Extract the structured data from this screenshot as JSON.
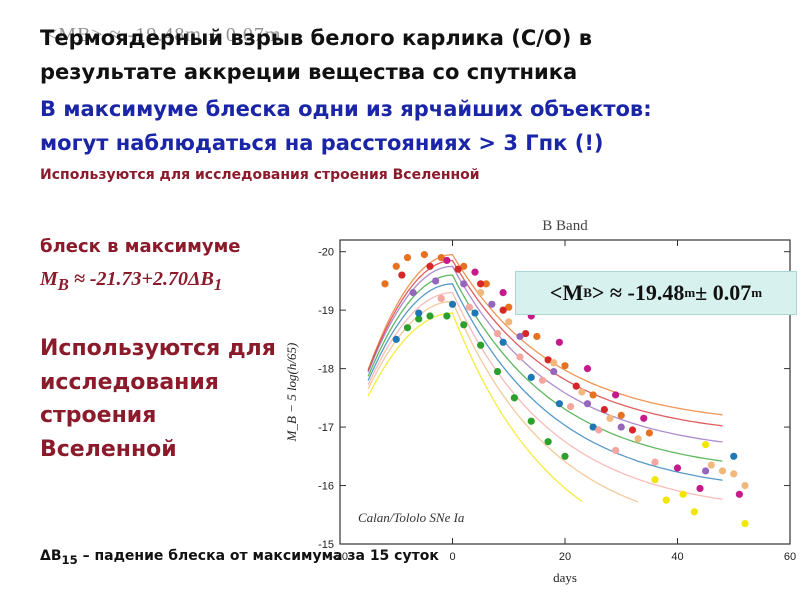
{
  "ghost_title": "<MB> ≈ -19.48m ± 0.07m",
  "title": {
    "line1": "Термоядерный взрыв белого карлика (C/O) в",
    "line2": "результате аккреции вещества со спутника"
  },
  "highlight": {
    "line1": "В максимуме блеска одни из ярчайших объектов:",
    "line2": "могут наблюдаться на расстояниях > 3 Гпк (!)"
  },
  "note_small": "Используются для исследования строения Вселенной",
  "left_column": {
    "peak_label": "блеск в максимуме",
    "formula_prefix": "M",
    "formula_sub": "B",
    "formula_rest": " ≈ -21.73+2.70ΔB",
    "formula_tail_sub": "1",
    "uses": [
      "Используются для",
      "исследования",
      "строения",
      "Вселенной"
    ]
  },
  "footnote": {
    "prefix": "ΔB",
    "sub": "15",
    "rest": " – падение блеска от максимума за 15 суток"
  },
  "callout": {
    "prefix": "<M",
    "sub": "B",
    "mid": "> ≈ -19.48",
    "sup1": "m",
    "rest": " ± 0.07",
    "sup2": "m"
  },
  "chart_data": {
    "type": "scatter",
    "title": "B Band",
    "xlabel": "days",
    "ylabel": "M_B − 5 log(h/65)",
    "annotation": "Calan/Tololo SNe Ia",
    "xlim": [
      -20,
      60
    ],
    "ylim": [
      -15,
      -20.2
    ],
    "y_inverted": true,
    "xticks": [
      -20,
      0,
      20,
      40,
      60
    ],
    "yticks": [
      -20,
      -19,
      -18,
      -17,
      -16,
      -15
    ],
    "series_colors": [
      "#e8711f",
      "#d62728",
      "#9467bd",
      "#2ca02c",
      "#1f77b4",
      "#f4a6a0",
      "#f0b87a",
      "#f2e600",
      "#c51b8a"
    ],
    "template_curves": [
      {
        "peak": -19.95,
        "width": 1.25,
        "decline": 1.55
      },
      {
        "peak": -19.85,
        "width": 1.2,
        "decline": 1.6
      },
      {
        "peak": -19.75,
        "width": 1.15,
        "decline": 1.7
      },
      {
        "peak": -19.6,
        "width": 1.1,
        "decline": 1.8
      },
      {
        "peak": -19.45,
        "width": 1.05,
        "decline": 1.9
      },
      {
        "peak": -19.3,
        "width": 1.0,
        "decline": 2.0
      },
      {
        "peak": -19.15,
        "width": 0.95,
        "decline": 2.15
      },
      {
        "peak": -18.95,
        "width": 0.9,
        "decline": 2.35
      }
    ],
    "points": [
      {
        "x": -12,
        "y": -19.45,
        "c": 0
      },
      {
        "x": -10,
        "y": -19.75,
        "c": 0
      },
      {
        "x": -8,
        "y": -19.9,
        "c": 0
      },
      {
        "x": -5,
        "y": -19.95,
        "c": 0
      },
      {
        "x": -2,
        "y": -19.9,
        "c": 0
      },
      {
        "x": 2,
        "y": -19.75,
        "c": 0
      },
      {
        "x": 6,
        "y": -19.45,
        "c": 0
      },
      {
        "x": 10,
        "y": -19.05,
        "c": 0
      },
      {
        "x": 15,
        "y": -18.55,
        "c": 0
      },
      {
        "x": 20,
        "y": -18.05,
        "c": 0
      },
      {
        "x": 25,
        "y": -17.55,
        "c": 0
      },
      {
        "x": 30,
        "y": -17.2,
        "c": 0
      },
      {
        "x": 35,
        "y": -16.9,
        "c": 0
      },
      {
        "x": -9,
        "y": -19.6,
        "c": 1
      },
      {
        "x": -4,
        "y": -19.75,
        "c": 1
      },
      {
        "x": 1,
        "y": -19.7,
        "c": 1
      },
      {
        "x": 5,
        "y": -19.45,
        "c": 1
      },
      {
        "x": 9,
        "y": -19.0,
        "c": 1
      },
      {
        "x": 13,
        "y": -18.6,
        "c": 1
      },
      {
        "x": 17,
        "y": -18.15,
        "c": 1
      },
      {
        "x": 22,
        "y": -17.7,
        "c": 1
      },
      {
        "x": 27,
        "y": -17.3,
        "c": 1
      },
      {
        "x": 32,
        "y": -16.95,
        "c": 1
      },
      {
        "x": -7,
        "y": -19.3,
        "c": 2
      },
      {
        "x": -3,
        "y": -19.5,
        "c": 2
      },
      {
        "x": 2,
        "y": -19.45,
        "c": 2
      },
      {
        "x": 7,
        "y": -19.1,
        "c": 2
      },
      {
        "x": 12,
        "y": -18.55,
        "c": 2
      },
      {
        "x": 18,
        "y": -17.95,
        "c": 2
      },
      {
        "x": 24,
        "y": -17.4,
        "c": 2
      },
      {
        "x": 30,
        "y": -17.0,
        "c": 2
      },
      {
        "x": 45,
        "y": -16.25,
        "c": 2
      },
      {
        "x": -8,
        "y": -18.7,
        "c": 3
      },
      {
        "x": -6,
        "y": -18.85,
        "c": 3
      },
      {
        "x": -4,
        "y": -18.9,
        "c": 3
      },
      {
        "x": -1,
        "y": -18.9,
        "c": 3
      },
      {
        "x": 2,
        "y": -18.75,
        "c": 3
      },
      {
        "x": 5,
        "y": -18.4,
        "c": 3
      },
      {
        "x": 8,
        "y": -17.95,
        "c": 3
      },
      {
        "x": 11,
        "y": -17.5,
        "c": 3
      },
      {
        "x": 14,
        "y": -17.1,
        "c": 3
      },
      {
        "x": 17,
        "y": -16.75,
        "c": 3
      },
      {
        "x": 20,
        "y": -16.5,
        "c": 3
      },
      {
        "x": -10,
        "y": -18.5,
        "c": 4
      },
      {
        "x": -6,
        "y": -18.95,
        "c": 4
      },
      {
        "x": 0,
        "y": -19.1,
        "c": 4
      },
      {
        "x": 4,
        "y": -18.95,
        "c": 4
      },
      {
        "x": 9,
        "y": -18.45,
        "c": 4
      },
      {
        "x": 14,
        "y": -17.85,
        "c": 4
      },
      {
        "x": 19,
        "y": -17.4,
        "c": 4
      },
      {
        "x": 25,
        "y": -17.0,
        "c": 4
      },
      {
        "x": 50,
        "y": -16.5,
        "c": 4
      },
      {
        "x": -2,
        "y": -19.2,
        "c": 5
      },
      {
        "x": 3,
        "y": -19.05,
        "c": 5
      },
      {
        "x": 8,
        "y": -18.6,
        "c": 5
      },
      {
        "x": 12,
        "y": -18.2,
        "c": 5
      },
      {
        "x": 16,
        "y": -17.8,
        "c": 5
      },
      {
        "x": 21,
        "y": -17.35,
        "c": 5
      },
      {
        "x": 26,
        "y": -16.95,
        "c": 5
      },
      {
        "x": 29,
        "y": -16.6,
        "c": 5
      },
      {
        "x": 36,
        "y": -16.4,
        "c": 5
      },
      {
        "x": 5,
        "y": -19.3,
        "c": 6
      },
      {
        "x": 10,
        "y": -18.8,
        "c": 6
      },
      {
        "x": 18,
        "y": -18.1,
        "c": 6
      },
      {
        "x": 23,
        "y": -17.6,
        "c": 6
      },
      {
        "x": 28,
        "y": -17.15,
        "c": 6
      },
      {
        "x": 33,
        "y": -16.8,
        "c": 6
      },
      {
        "x": 46,
        "y": -16.35,
        "c": 6
      },
      {
        "x": 48,
        "y": -16.25,
        "c": 6
      },
      {
        "x": 50,
        "y": -16.2,
        "c": 6
      },
      {
        "x": 52,
        "y": -16.0,
        "c": 6
      },
      {
        "x": 36,
        "y": -16.1,
        "c": 7
      },
      {
        "x": 38,
        "y": -15.75,
        "c": 7
      },
      {
        "x": 41,
        "y": -15.85,
        "c": 7
      },
      {
        "x": 43,
        "y": -15.55,
        "c": 7
      },
      {
        "x": 52,
        "y": -15.35,
        "c": 7
      },
      {
        "x": 45,
        "y": -16.7,
        "c": 7
      },
      {
        "x": -1,
        "y": -19.85,
        "c": 8
      },
      {
        "x": 4,
        "y": -19.65,
        "c": 8
      },
      {
        "x": 9,
        "y": -19.3,
        "c": 8
      },
      {
        "x": 14,
        "y": -18.9,
        "c": 8
      },
      {
        "x": 19,
        "y": -18.45,
        "c": 8
      },
      {
        "x": 24,
        "y": -18.0,
        "c": 8
      },
      {
        "x": 29,
        "y": -17.55,
        "c": 8
      },
      {
        "x": 34,
        "y": -17.15,
        "c": 8
      },
      {
        "x": 40,
        "y": -16.3,
        "c": 8
      },
      {
        "x": 44,
        "y": -15.95,
        "c": 8
      },
      {
        "x": 51,
        "y": -15.85,
        "c": 8
      }
    ]
  }
}
